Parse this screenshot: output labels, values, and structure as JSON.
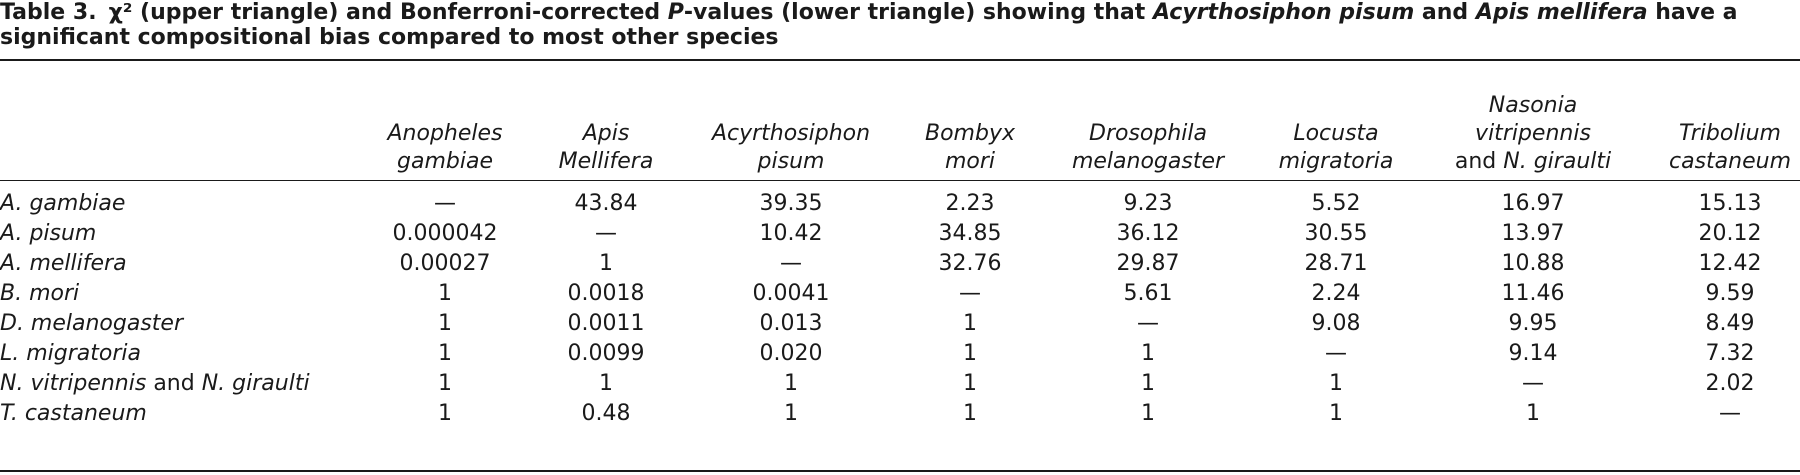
{
  "caption": {
    "number": "Table 3.",
    "parts": [
      {
        "t": "χ² (upper triangle) and Bonferroni-corrected ",
        "i": false
      },
      {
        "t": "P",
        "i": true
      },
      {
        "t": "-values (lower triangle) showing that ",
        "i": false
      },
      {
        "t": "Acyrthosiphon pisum",
        "i": true
      },
      {
        "t": " and ",
        "i": false
      },
      {
        "t": "Apis mellifera",
        "i": true
      },
      {
        "t": " have a significant compositional bias compared to most other species",
        "i": false
      }
    ]
  },
  "columns": [
    {
      "lines": [
        [
          {
            "t": "Anopheles",
            "i": true
          }
        ],
        [
          {
            "t": "gambiae",
            "i": true
          }
        ]
      ]
    },
    {
      "lines": [
        [
          {
            "t": "Apis",
            "i": true
          }
        ],
        [
          {
            "t": "Mellifera",
            "i": true
          }
        ]
      ]
    },
    {
      "lines": [
        [
          {
            "t": "Acyrthosiphon",
            "i": true
          }
        ],
        [
          {
            "t": "pisum",
            "i": true
          }
        ]
      ]
    },
    {
      "lines": [
        [
          {
            "t": "Bombyx",
            "i": true
          }
        ],
        [
          {
            "t": "mori",
            "i": true
          }
        ]
      ]
    },
    {
      "lines": [
        [
          {
            "t": "Drosophila",
            "i": true
          }
        ],
        [
          {
            "t": "melanogaster",
            "i": true
          }
        ]
      ]
    },
    {
      "lines": [
        [
          {
            "t": "Locusta",
            "i": true
          }
        ],
        [
          {
            "t": "migratoria",
            "i": true
          }
        ]
      ]
    },
    {
      "lines": [
        [
          {
            "t": "Nasonia",
            "i": true
          }
        ],
        [
          {
            "t": "vitripennis",
            "i": true
          }
        ],
        [
          {
            "t": "and ",
            "i": false
          },
          {
            "t": "N. giraulti",
            "i": true
          }
        ]
      ]
    },
    {
      "lines": [
        [
          {
            "t": "Tribolium",
            "i": true
          }
        ],
        [
          {
            "t": "castaneum",
            "i": true
          }
        ]
      ]
    }
  ],
  "rows": [
    {
      "label": [
        {
          "t": "A. gambiae",
          "i": true
        }
      ],
      "cells": [
        "—",
        "43.84",
        "39.35",
        "2.23",
        "9.23",
        "5.52",
        "16.97",
        "15.13"
      ]
    },
    {
      "label": [
        {
          "t": "A. pisum",
          "i": true
        }
      ],
      "cells": [
        "0.000042",
        "—",
        "10.42",
        "34.85",
        "36.12",
        "30.55",
        "13.97",
        "20.12"
      ]
    },
    {
      "label": [
        {
          "t": "A. mellifera",
          "i": true
        }
      ],
      "cells": [
        "0.00027",
        "1",
        "—",
        "32.76",
        "29.87",
        "28.71",
        "10.88",
        "12.42"
      ]
    },
    {
      "label": [
        {
          "t": "B. mori",
          "i": true
        }
      ],
      "cells": [
        "1",
        "0.0018",
        "0.0041",
        "—",
        "5.61",
        "2.24",
        "11.46",
        "9.59"
      ]
    },
    {
      "label": [
        {
          "t": "D. melanogaster",
          "i": true
        }
      ],
      "cells": [
        "1",
        "0.0011",
        "0.013",
        "1",
        "—",
        "9.08",
        "9.95",
        "8.49"
      ]
    },
    {
      "label": [
        {
          "t": "L. migratoria",
          "i": true
        }
      ],
      "cells": [
        "1",
        "0.0099",
        "0.020",
        "1",
        "1",
        "—",
        "9.14",
        "7.32"
      ]
    },
    {
      "label": [
        {
          "t": "N. vitripennis",
          "i": true
        },
        {
          "t": " and ",
          "i": false
        },
        {
          "t": "N. giraulti",
          "i": true
        }
      ],
      "cells": [
        "1",
        "1",
        "1",
        "1",
        "1",
        "1",
        "—",
        "2.02"
      ]
    },
    {
      "label": [
        {
          "t": "T. castaneum",
          "i": true
        }
      ],
      "cells": [
        "1",
        "0.48",
        "1",
        "1",
        "1",
        "1",
        "1",
        "—"
      ]
    }
  ]
}
